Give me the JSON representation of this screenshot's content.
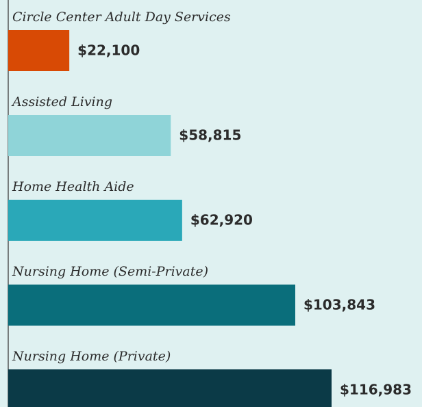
{
  "chart_data": {
    "type": "bar",
    "orientation": "horizontal",
    "categories": [
      "Circle Center Adult Day Services",
      "Assisted Living",
      "Home Health Aide",
      "Nursing Home (Semi-Private)",
      "Nursing Home (Private)"
    ],
    "values": [
      22100,
      58815,
      62920,
      103843,
      116983
    ],
    "value_labels": [
      "$22,100",
      "$58,815",
      "$62,920",
      "$103,843",
      "$116,983"
    ],
    "colors": [
      "#d84a05",
      "#8fd4d8",
      "#2aa8b8",
      "#0a6e7b",
      "#0b3a47"
    ]
  }
}
